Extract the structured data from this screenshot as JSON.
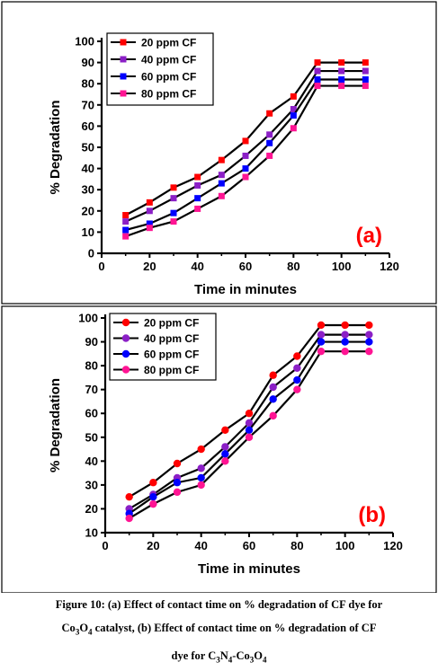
{
  "chart_data": [
    {
      "type": "line",
      "panel_label": "(a)",
      "xlabel": "Time in minutes",
      "ylabel": "% Degradation",
      "xlim": [
        0,
        120
      ],
      "ylim": [
        0,
        100
      ],
      "xticks": [
        0,
        20,
        40,
        60,
        80,
        100,
        120
      ],
      "yticks": [
        0,
        10,
        20,
        30,
        40,
        50,
        60,
        70,
        80,
        90,
        100
      ],
      "marker": "square",
      "legend_position": "top-left",
      "x": [
        10,
        20,
        30,
        40,
        50,
        60,
        70,
        80,
        90,
        100,
        110
      ],
      "series": [
        {
          "name": "20 ppm CF",
          "color": "#ff0000",
          "values": [
            18,
            24,
            31,
            36,
            44,
            53,
            66,
            74,
            90,
            90,
            90
          ]
        },
        {
          "name": "40 ppm CF",
          "color": "#8b1fc6",
          "values": [
            15,
            20,
            26,
            32,
            37,
            46,
            56,
            68,
            86,
            86,
            86
          ]
        },
        {
          "name": "60 ppm CF",
          "color": "#0000ff",
          "values": [
            11,
            14,
            19,
            26,
            33,
            40,
            52,
            65,
            82,
            82,
            82
          ]
        },
        {
          "name": "80 ppm CF",
          "color": "#ff1493",
          "values": [
            8,
            12,
            15,
            21,
            27,
            36,
            46,
            59,
            79,
            79,
            79
          ]
        }
      ]
    },
    {
      "type": "line",
      "panel_label": "(b)",
      "xlabel": "Time in minutes",
      "ylabel": "% Degradation",
      "xlim": [
        0,
        120
      ],
      "ylim": [
        10,
        100
      ],
      "xticks": [
        0,
        20,
        40,
        60,
        80,
        100,
        120
      ],
      "yticks": [
        10,
        20,
        30,
        40,
        50,
        60,
        70,
        80,
        90,
        100
      ],
      "marker": "circle",
      "legend_position": "top-left",
      "x": [
        10,
        20,
        30,
        40,
        50,
        60,
        70,
        80,
        90,
        100,
        110
      ],
      "series": [
        {
          "name": "20 ppm CF",
          "color": "#ff0000",
          "values": [
            25,
            31,
            39,
            45,
            53,
            60,
            76,
            84,
            97,
            97,
            97
          ]
        },
        {
          "name": "40 ppm CF",
          "color": "#8b1fc6",
          "values": [
            20,
            26,
            33,
            37,
            46,
            56,
            71,
            79,
            93,
            93,
            93
          ]
        },
        {
          "name": "60 ppm CF",
          "color": "#0000ff",
          "values": [
            18,
            25,
            31,
            33,
            43,
            53,
            66,
            74,
            90,
            90,
            90
          ]
        },
        {
          "name": "80 ppm CF",
          "color": "#ff1493",
          "values": [
            16,
            22,
            27,
            30,
            40,
            50,
            59,
            70,
            86,
            86,
            86
          ]
        }
      ]
    }
  ],
  "caption": {
    "line1": "Figure 10: (a) Effect of contact time on % degradation of CF dye for",
    "line2_a": "Co",
    "line2_b": "O",
    "line2_c": " catalyst, (b)  Effect of contact time on % degradation of CF",
    "line3_a": "dye for  C",
    "line3_b": "N",
    "line3_c": "-Co",
    "line3_d": "O",
    "sub_3": "3",
    "sub_4": "4"
  }
}
